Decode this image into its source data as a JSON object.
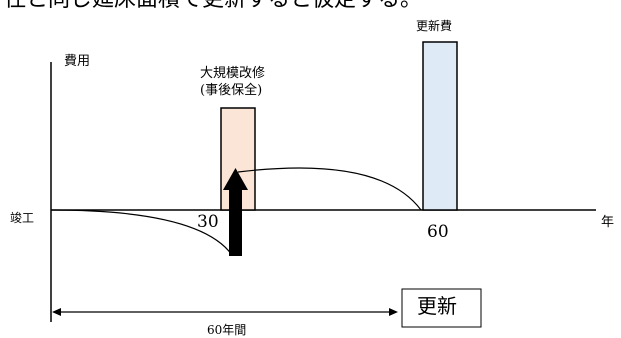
{
  "header_text": "住と同じ延床面積で更新すると仮定する。",
  "labels": {
    "y_axis": "費用",
    "origin": "竣工",
    "x_axis": "年",
    "major_repair_line1": "大規模改修",
    "major_repair_line2": "(事後保全)",
    "renewal_cost": "更新費",
    "year_30": "30",
    "year_60": "60",
    "period": "60年間",
    "renewal_box": "更新"
  },
  "colors": {
    "major_repair_fill": "#fbe5d6",
    "renewal_fill": "#deebf7",
    "line": "#000000"
  }
}
